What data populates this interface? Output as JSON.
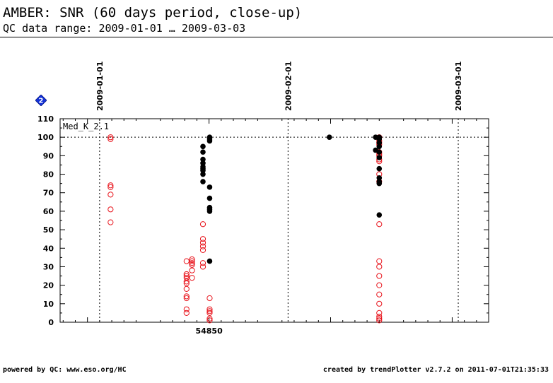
{
  "header": {
    "title": "AMBER: SNR (60 days period, close-up)",
    "subtitle": "QC data range: 2009-01-01 … 2009-03-03"
  },
  "footer": {
    "left": "powered by QC: www.eso.org/HC",
    "right": "created by trendPlotter v2.7.2 on 2011-07-01T21:35:33"
  },
  "help_icon": "help-diamond-icon",
  "chart_data": {
    "type": "scatter",
    "panel_label": "Med_K_2.1",
    "xlim": [
      54825.5,
      54896.0
    ],
    "ylim": [
      0,
      110
    ],
    "yticks": [
      0,
      10,
      20,
      30,
      40,
      50,
      60,
      70,
      80,
      90,
      100,
      110
    ],
    "xticks_labeled": [
      {
        "x": 54850,
        "label": "54850"
      }
    ],
    "xticks_major": [
      54830,
      54850,
      54870,
      54890
    ],
    "reference_line_y": 100,
    "date_markers": [
      {
        "x": 54832,
        "label": "2009-01-01"
      },
      {
        "x": 54863,
        "label": "2009-02-01"
      },
      {
        "x": 54891,
        "label": "2009-03-01"
      }
    ],
    "colors": {
      "open_series": "#e8141c",
      "filled_series": "#000000"
    },
    "series": [
      {
        "marker": "open",
        "points": [
          [
            54833.8,
            100
          ],
          [
            54833.8,
            99
          ],
          [
            54833.8,
            74
          ],
          [
            54833.8,
            73
          ],
          [
            54833.8,
            69
          ],
          [
            54833.8,
            61
          ],
          [
            54833.8,
            54
          ],
          [
            54846.3,
            33
          ],
          [
            54846.3,
            26
          ],
          [
            54846.3,
            25
          ],
          [
            54846.3,
            24
          ],
          [
            54846.3,
            22
          ],
          [
            54846.3,
            21
          ],
          [
            54846.3,
            18
          ],
          [
            54846.3,
            14
          ],
          [
            54846.3,
            13
          ],
          [
            54846.3,
            7
          ],
          [
            54846.3,
            5
          ],
          [
            54847.2,
            34
          ],
          [
            54847.2,
            33
          ],
          [
            54847.2,
            32
          ],
          [
            54847.2,
            31
          ],
          [
            54847.2,
            28
          ],
          [
            54847.2,
            24
          ],
          [
            54849.0,
            53
          ],
          [
            54849.0,
            45
          ],
          [
            54849.0,
            43
          ],
          [
            54849.0,
            41
          ],
          [
            54849.0,
            39
          ],
          [
            54849.0,
            32
          ],
          [
            54849.0,
            30
          ],
          [
            54850.1,
            13
          ],
          [
            54850.1,
            7
          ],
          [
            54850.1,
            6
          ],
          [
            54850.1,
            5
          ],
          [
            54850.1,
            2
          ],
          [
            54850.1,
            1
          ],
          [
            54878.0,
            100
          ],
          [
            54878.0,
            98
          ],
          [
            54878.0,
            97
          ],
          [
            54878.0,
            96
          ],
          [
            54878.0,
            92
          ],
          [
            54878.0,
            91
          ],
          [
            54878.0,
            90
          ],
          [
            54878.0,
            88
          ],
          [
            54878.0,
            87
          ],
          [
            54878.0,
            80
          ],
          [
            54878.0,
            76
          ],
          [
            54878.0,
            53
          ],
          [
            54878.0,
            33
          ],
          [
            54878.0,
            30
          ],
          [
            54878.0,
            25
          ],
          [
            54878.0,
            20
          ],
          [
            54878.0,
            15
          ],
          [
            54878.0,
            10
          ],
          [
            54878.0,
            5
          ],
          [
            54878.0,
            3
          ],
          [
            54878.0,
            2
          ],
          [
            54878.0,
            1
          ]
        ]
      },
      {
        "marker": "filled",
        "points": [
          [
            54849.0,
            95
          ],
          [
            54849.0,
            92
          ],
          [
            54849.0,
            88
          ],
          [
            54849.0,
            86
          ],
          [
            54849.0,
            84
          ],
          [
            54849.0,
            83
          ],
          [
            54849.0,
            82
          ],
          [
            54849.0,
            80
          ],
          [
            54849.0,
            76
          ],
          [
            54850.1,
            100
          ],
          [
            54850.1,
            99
          ],
          [
            54850.1,
            98
          ],
          [
            54850.1,
            73
          ],
          [
            54850.1,
            67
          ],
          [
            54850.1,
            62
          ],
          [
            54850.1,
            61
          ],
          [
            54850.1,
            60
          ],
          [
            54850.1,
            33
          ],
          [
            54869.8,
            100
          ],
          [
            54877.4,
            100
          ],
          [
            54877.4,
            93
          ],
          [
            54878.0,
            100
          ],
          [
            54878.0,
            99
          ],
          [
            54878.0,
            97
          ],
          [
            54878.0,
            95
          ],
          [
            54878.0,
            92
          ],
          [
            54878.0,
            89
          ],
          [
            54878.0,
            83
          ],
          [
            54878.0,
            78
          ],
          [
            54878.0,
            76
          ],
          [
            54878.0,
            75
          ],
          [
            54878.0,
            58
          ]
        ]
      }
    ]
  }
}
